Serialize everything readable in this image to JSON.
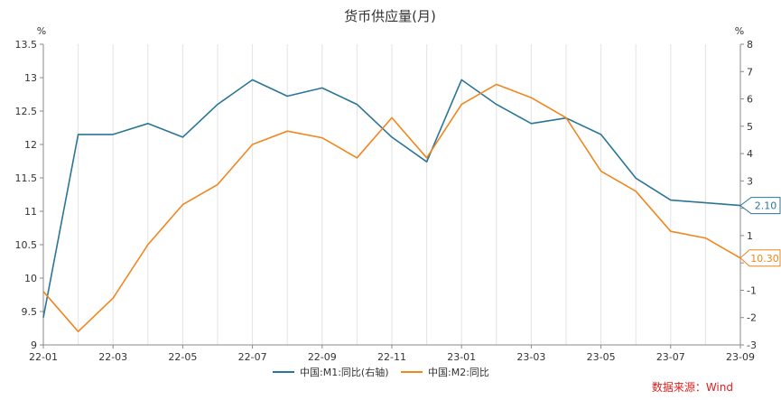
{
  "chart_data": {
    "type": "line",
    "title": "货币供应量(月)",
    "left_axis": {
      "unit": "%",
      "range": [
        9,
        13.5
      ],
      "ticks": [
        "9",
        "9.5",
        "10",
        "10.5",
        "11",
        "11.5",
        "12",
        "12.5",
        "13",
        "13.5"
      ]
    },
    "right_axis": {
      "unit": "%",
      "range": [
        -3,
        8
      ],
      "ticks": [
        "-3",
        "-2",
        "-1",
        "0",
        "1",
        "2",
        "3",
        "4",
        "5",
        "6",
        "7",
        "8"
      ]
    },
    "x_ticks": [
      "22-01",
      "22-03",
      "22-05",
      "22-07",
      "22-09",
      "22-11",
      "23-01",
      "23-03",
      "23-05",
      "23-07",
      "23-09"
    ],
    "x": [
      "22-01",
      "22-02",
      "22-03",
      "22-04",
      "22-05",
      "22-06",
      "22-07",
      "22-08",
      "22-09",
      "22-10",
      "22-11",
      "22-12",
      "23-01",
      "23-02",
      "23-03",
      "23-04",
      "23-05",
      "23-06",
      "23-07",
      "23-08",
      "23-09"
    ],
    "series": [
      {
        "name": "中国:M1:同比(右轴)",
        "axis": "right",
        "color": "#2b7596",
        "values": [
          -2.0,
          4.7,
          4.7,
          5.1,
          4.6,
          5.8,
          6.7,
          6.1,
          6.4,
          5.8,
          4.6,
          3.7,
          6.7,
          5.8,
          5.1,
          5.3,
          4.7,
          3.1,
          2.3,
          2.2,
          2.1
        ]
      },
      {
        "name": "中国:M2:同比",
        "axis": "left",
        "color": "#f0861e",
        "values": [
          9.8,
          9.2,
          9.7,
          10.5,
          11.1,
          11.4,
          12.0,
          12.2,
          12.1,
          11.8,
          12.4,
          11.8,
          12.6,
          12.9,
          12.7,
          12.4,
          11.6,
          11.3,
          10.7,
          10.6,
          10.3
        ]
      }
    ],
    "end_labels": {
      "m1": "2.10",
      "m2": "10.30"
    },
    "legend_position": "bottom",
    "grid": "vertical",
    "source": "数据来源：Wind"
  }
}
